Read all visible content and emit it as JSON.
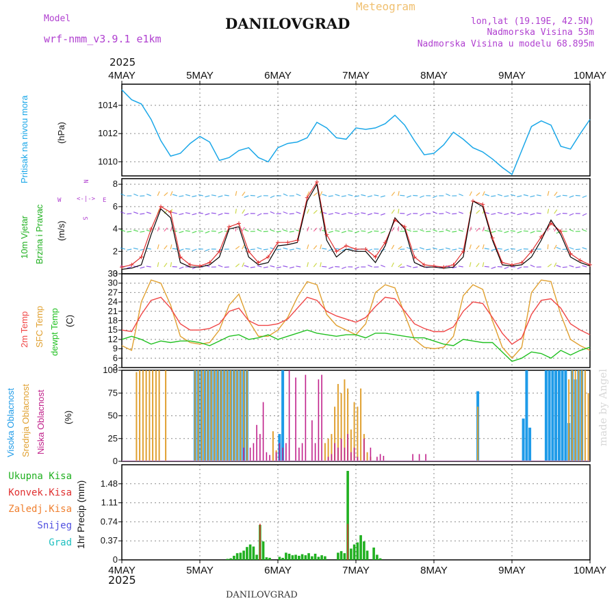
{
  "header": {
    "title": "DANILOVGRAD",
    "subtitle": "Meteogram",
    "model_label": "Model",
    "model_name": "wrf-nmm_v3.9.1 e1km",
    "coords": "lon,lat (19.19E, 42.5N)",
    "elevation": "Nadmorska Visina 53m",
    "model_elevation": "Nadmorska Visina u modelu 68.895m",
    "year_top": "2025",
    "year_bottom": "2025",
    "footer": "DANILOVGRAD",
    "watermark": "made by Angel"
  },
  "colors": {
    "pressure": "#1aa7e8",
    "wind_speed": "#000000",
    "wind_gust": "#e03030",
    "t2m": "#f04545",
    "sfc": "#e0a030",
    "dew": "#20c020",
    "high_cloud": "#1e9be8",
    "mid_cloud": "#e0a030",
    "low_cloud": "#c0208a",
    "precip_total": "#20b020",
    "precip_conv": "#e03030",
    "precip_snow": "#5050e0",
    "precip_grad": "#20c0c0",
    "wind_label": "#20b020",
    "dir_label": "#b040d0"
  },
  "time_axis": {
    "labels": [
      "4MAY",
      "5MAY",
      "6MAY",
      "7MAY",
      "8MAY",
      "9MAY",
      "10MAY"
    ],
    "start_hour": 0,
    "end_hour": 144
  },
  "labels": {
    "pressure": [
      "Pritisak na nivou mora"
    ],
    "pressure_unit": "(hPa)",
    "wind": [
      "10m Vjetar",
      "Brzina i Pravac"
    ],
    "wind_unit": "(m/s)",
    "wind_compass": [
      "N",
      "W",
      "E",
      "S"
    ],
    "temp": [
      "2m Temp",
      "SFC Temp",
      "dewpt Temp"
    ],
    "temp_unit": "(C)",
    "cloud": [
      "Visoka Oblacnost",
      "Srednja Oblacnost",
      "Niska Oblacnost"
    ],
    "cloud_unit": "(%)",
    "precip_legend": [
      "Ukupna Kisa",
      "Konvek.Kisa",
      "Zaledj.Kisa",
      "Snijeg",
      "Grad"
    ],
    "precip_unit": "1hr Precip (mm)"
  },
  "chart_data": [
    {
      "type": "line",
      "name": "pressure",
      "ylabel": "(hPa)",
      "ylim": [
        1009,
        1015.5
      ],
      "yticks": [
        1010,
        1012,
        1014
      ],
      "grid": true,
      "x": [
        0,
        3,
        6,
        9,
        12,
        15,
        18,
        21,
        24,
        27,
        30,
        33,
        36,
        39,
        42,
        45,
        48,
        51,
        54,
        57,
        60,
        63,
        66,
        69,
        72,
        75,
        78,
        81,
        84,
        87,
        90,
        93,
        96,
        99,
        102,
        105,
        108,
        111,
        114,
        117,
        120,
        123,
        126,
        129,
        132,
        135,
        138,
        141,
        144
      ],
      "series": [
        {
          "name": "",
          "values": [
            1015.1,
            1014.4,
            1014.1,
            1013.0,
            1011.5,
            1010.4,
            1010.6,
            1011.3,
            1011.8,
            1011.4,
            1010.1,
            1010.3,
            1010.8,
            1011.0,
            1010.3,
            1010.0,
            1011.0,
            1011.3,
            1011.4,
            1011.7,
            1012.8,
            1012.4,
            1011.7,
            1011.6,
            1012.4,
            1012.3,
            1012.4,
            1012.7,
            1013.3,
            1012.6,
            1011.5,
            1010.5,
            1010.6,
            1011.2,
            1012.1,
            1011.6,
            1011.0,
            1010.7,
            1010.2,
            1009.6,
            1009.1,
            1010.8,
            1012.5,
            1012.9,
            1012.6,
            1011.1,
            1010.9,
            1012.0,
            1013.0
          ]
        }
      ]
    },
    {
      "type": "line",
      "name": "wind",
      "ylabel": "(m/s)",
      "ylim": [
        0,
        8.5
      ],
      "yticks": [
        0,
        2,
        4,
        6,
        8
      ],
      "grid": true,
      "x": [
        0,
        3,
        6,
        9,
        12,
        15,
        18,
        21,
        24,
        27,
        30,
        33,
        36,
        39,
        42,
        45,
        48,
        51,
        54,
        57,
        60,
        63,
        66,
        69,
        72,
        75,
        78,
        81,
        84,
        87,
        90,
        93,
        96,
        99,
        102,
        105,
        108,
        111,
        114,
        117,
        120,
        123,
        126,
        129,
        132,
        135,
        138,
        141,
        144
      ],
      "series": [
        {
          "name": "",
          "values": [
            0.4,
            0.5,
            0.8,
            3.5,
            5.8,
            5.0,
            1.0,
            0.6,
            0.6,
            0.8,
            1.5,
            4.0,
            4.2,
            1.5,
            0.8,
            1.0,
            2.5,
            2.6,
            2.8,
            6.5,
            8.0,
            3.0,
            1.5,
            2.2,
            2.0,
            2.0,
            1.0,
            2.5,
            5.0,
            4.0,
            1.0,
            0.6,
            0.6,
            0.5,
            0.6,
            1.5,
            6.5,
            6.0,
            3.0,
            0.8,
            0.7,
            0.8,
            1.5,
            3.0,
            4.8,
            3.5,
            1.5,
            1.0,
            0.7
          ]
        },
        {
          "name": "",
          "values": [
            0.6,
            0.8,
            1.5,
            4.0,
            6.0,
            5.5,
            1.5,
            0.8,
            0.7,
            1.0,
            2.0,
            4.2,
            4.5,
            2.0,
            1.0,
            1.5,
            2.8,
            2.8,
            3.0,
            6.8,
            8.2,
            3.5,
            2.0,
            2.5,
            2.2,
            2.2,
            1.5,
            2.8,
            4.8,
            4.2,
            1.5,
            0.8,
            0.7,
            0.6,
            0.8,
            2.0,
            6.5,
            6.2,
            3.2,
            1.0,
            0.8,
            1.0,
            2.0,
            3.3,
            4.5,
            3.8,
            1.8,
            1.2,
            0.8
          ]
        }
      ]
    },
    {
      "type": "line",
      "name": "temperature",
      "ylabel": "(C)",
      "ylim": [
        3,
        33
      ],
      "yticks": [
        3,
        6,
        9,
        12,
        15,
        18,
        21,
        24,
        27,
        30,
        33
      ],
      "grid": true,
      "x": [
        0,
        3,
        6,
        9,
        12,
        15,
        18,
        21,
        24,
        27,
        30,
        33,
        36,
        39,
        42,
        45,
        48,
        51,
        54,
        57,
        60,
        63,
        66,
        69,
        72,
        75,
        78,
        81,
        84,
        87,
        90,
        93,
        96,
        99,
        102,
        105,
        108,
        111,
        114,
        117,
        120,
        123,
        126,
        129,
        132,
        135,
        138,
        141,
        144
      ],
      "series": [
        {
          "name": "",
          "values": [
            15.0,
            14.5,
            20.0,
            24.5,
            25.5,
            22.0,
            17.0,
            15.0,
            15.0,
            15.5,
            17.0,
            21.0,
            22.0,
            18.0,
            16.5,
            16.5,
            17.0,
            18.5,
            22.0,
            25.5,
            24.5,
            21.0,
            19.5,
            18.5,
            17.5,
            19.0,
            22.5,
            25.5,
            25.0,
            21.0,
            17.0,
            15.5,
            14.5,
            14.5,
            16.0,
            21.0,
            24.0,
            23.5,
            19.0,
            14.0,
            10.5,
            12.5,
            20.0,
            24.5,
            25.0,
            22.0,
            17.0,
            15.0,
            13.5
          ]
        },
        {
          "name": "",
          "values": [
            10.0,
            8.5,
            24.0,
            31.0,
            30.0,
            23.0,
            13.0,
            11.0,
            10.5,
            11.0,
            15.0,
            23.0,
            26.5,
            18.0,
            13.0,
            13.0,
            15.0,
            19.0,
            25.5,
            30.5,
            29.5,
            20.0,
            16.5,
            15.0,
            13.5,
            17.0,
            27.0,
            29.5,
            28.5,
            20.0,
            12.0,
            9.5,
            9.0,
            9.5,
            13.0,
            26.0,
            29.5,
            28.0,
            18.0,
            9.5,
            6.0,
            9.5,
            27.0,
            31.0,
            30.5,
            20.0,
            12.0,
            10.0,
            8.5
          ]
        },
        {
          "name": "",
          "values": [
            12.0,
            13.0,
            12.0,
            10.5,
            11.5,
            11.0,
            11.5,
            11.5,
            11.0,
            10.0,
            11.5,
            13.0,
            13.5,
            12.0,
            12.5,
            13.5,
            12.0,
            13.0,
            14.0,
            15.0,
            14.0,
            13.5,
            13.0,
            13.5,
            13.5,
            12.5,
            14.0,
            14.0,
            13.5,
            13.0,
            12.5,
            12.5,
            11.5,
            10.5,
            10.0,
            12.0,
            11.5,
            11.0,
            11.0,
            8.0,
            5.0,
            6.0,
            8.0,
            7.5,
            6.0,
            8.5,
            7.0,
            8.5,
            9.5
          ]
        }
      ]
    },
    {
      "type": "bar",
      "name": "cloud cover",
      "ylabel": "(%)",
      "ylim": [
        0,
        100
      ],
      "yticks": [
        0,
        25,
        50,
        75,
        100
      ],
      "grid": true,
      "series": [
        {
          "name": "",
          "x": [
            22,
            23,
            24,
            25,
            26,
            27,
            28,
            29,
            30,
            31,
            32,
            33,
            34,
            35,
            36,
            37,
            38,
            48,
            49,
            109,
            123,
            124,
            125,
            126,
            130,
            131,
            132,
            133,
            134,
            135,
            136,
            137,
            138,
            139,
            140,
            141
          ],
          "values": [
            100,
            100,
            100,
            100,
            100,
            100,
            100,
            100,
            100,
            100,
            100,
            100,
            100,
            100,
            100,
            100,
            100,
            30,
            100,
            77,
            47,
            100,
            37,
            0,
            100,
            100,
            100,
            100,
            100,
            100,
            100,
            42,
            100,
            90,
            100,
            100
          ]
        },
        {
          "name": "",
          "x": [
            4,
            5,
            6,
            7,
            8,
            9,
            10,
            11,
            13,
            22,
            23,
            24,
            25,
            26,
            27,
            28,
            29,
            30,
            31,
            32,
            33,
            34,
            35,
            36,
            37,
            38,
            46,
            47,
            62,
            63,
            64,
            65,
            66,
            67,
            68,
            69,
            70,
            71,
            72,
            73,
            74,
            75,
            76,
            109,
            137,
            138,
            139,
            140,
            141,
            142,
            143
          ],
          "values": [
            98,
            100,
            100,
            100,
            100,
            100,
            100,
            100,
            100,
            100,
            100,
            100,
            100,
            100,
            100,
            100,
            100,
            100,
            100,
            100,
            100,
            100,
            100,
            100,
            100,
            100,
            33,
            12,
            20,
            25,
            30,
            60,
            85,
            75,
            90,
            80,
            35,
            65,
            60,
            80,
            30,
            10,
            5,
            60,
            90,
            100,
            100,
            100,
            100,
            100,
            75
          ]
        },
        {
          "name": "",
          "x": [
            37,
            39,
            40,
            41,
            42,
            43,
            44,
            45,
            47,
            48,
            49,
            50,
            51,
            53,
            54,
            55,
            56,
            58,
            59,
            60,
            61,
            63,
            64,
            65,
            66,
            67,
            68,
            69,
            70,
            71,
            72,
            74,
            76,
            78,
            79,
            80,
            89,
            91,
            93
          ],
          "values": [
            15,
            15,
            20,
            40,
            30,
            65,
            10,
            7,
            10,
            20,
            15,
            20,
            100,
            92,
            15,
            20,
            95,
            45,
            20,
            90,
            95,
            5,
            8,
            20,
            15,
            25,
            15,
            30,
            10,
            15,
            5,
            25,
            15,
            5,
            8,
            6,
            8,
            8,
            8
          ]
        }
      ]
    },
    {
      "type": "bar",
      "name": "precipitation",
      "ylabel": "1hr Precip (mm)",
      "ylim": [
        0,
        1.85
      ],
      "yticks": [
        0,
        0.37,
        0.74,
        1.11,
        1.48
      ],
      "grid": true,
      "series": [
        {
          "name": "",
          "x": [
            32,
            33,
            34,
            35,
            36,
            37,
            38,
            39,
            40,
            41,
            42,
            43,
            44,
            45,
            48,
            49,
            50,
            51,
            52,
            53,
            54,
            55,
            56,
            57,
            58,
            59,
            60,
            61,
            62,
            66,
            67,
            68,
            69,
            70,
            71,
            72,
            73,
            74,
            75,
            77,
            78,
            79
          ],
          "values": [
            0.02,
            0.03,
            0.08,
            0.13,
            0.14,
            0.18,
            0.25,
            0.3,
            0.26,
            0.1,
            0.68,
            0.36,
            0.05,
            0.04,
            0.06,
            0.04,
            0.14,
            0.12,
            0.09,
            0.1,
            0.08,
            0.11,
            0.09,
            0.13,
            0.07,
            0.12,
            0.06,
            0.09,
            0.07,
            0.14,
            0.17,
            0.13,
            1.73,
            0.22,
            0.3,
            0.34,
            0.48,
            0.36,
            0.18,
            0.24,
            0.1,
            0.03
          ]
        },
        {
          "name": "",
          "x": [
            42,
            69
          ],
          "values": [
            0.7,
            0.7
          ]
        }
      ]
    }
  ]
}
